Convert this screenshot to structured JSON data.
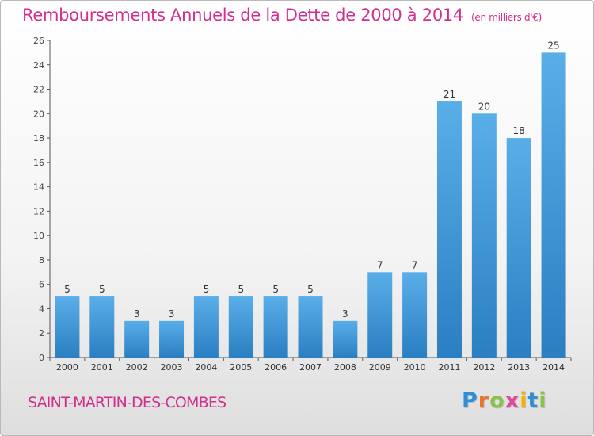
{
  "title": "Remboursements Annuels de la Dette de 2000 à 2014",
  "unit_note": "(en milliers d'€)",
  "commune": "SAINT-MARTIN-DES-COMBES",
  "logo": {
    "text": "Proxiti",
    "colors": [
      "#2e8fd4",
      "#e8772e",
      "#8bc34a",
      "#e04a9b",
      "#f2b300",
      "#2e8fd4",
      "#8bc34a"
    ]
  },
  "colors": {
    "accent": "#d22f8d",
    "bar_top": "#5aaee8",
    "bar_bottom": "#2a7fc2"
  },
  "chart_data": {
    "type": "bar",
    "title": "Remboursements Annuels de la Dette de 2000 à 2014",
    "categories": [
      "2000",
      "2001",
      "2002",
      "2003",
      "2004",
      "2005",
      "2006",
      "2007",
      "2008",
      "2009",
      "2010",
      "2011",
      "2012",
      "2013",
      "2014"
    ],
    "values": [
      5,
      5,
      3,
      3,
      5,
      5,
      5,
      5,
      3,
      7,
      7,
      21,
      20,
      18,
      25
    ],
    "ylim": [
      0,
      26
    ],
    "yticks": [
      0,
      2,
      4,
      6,
      8,
      10,
      12,
      14,
      16,
      18,
      20,
      22,
      24,
      26
    ],
    "grid": false,
    "data_labels": true
  }
}
